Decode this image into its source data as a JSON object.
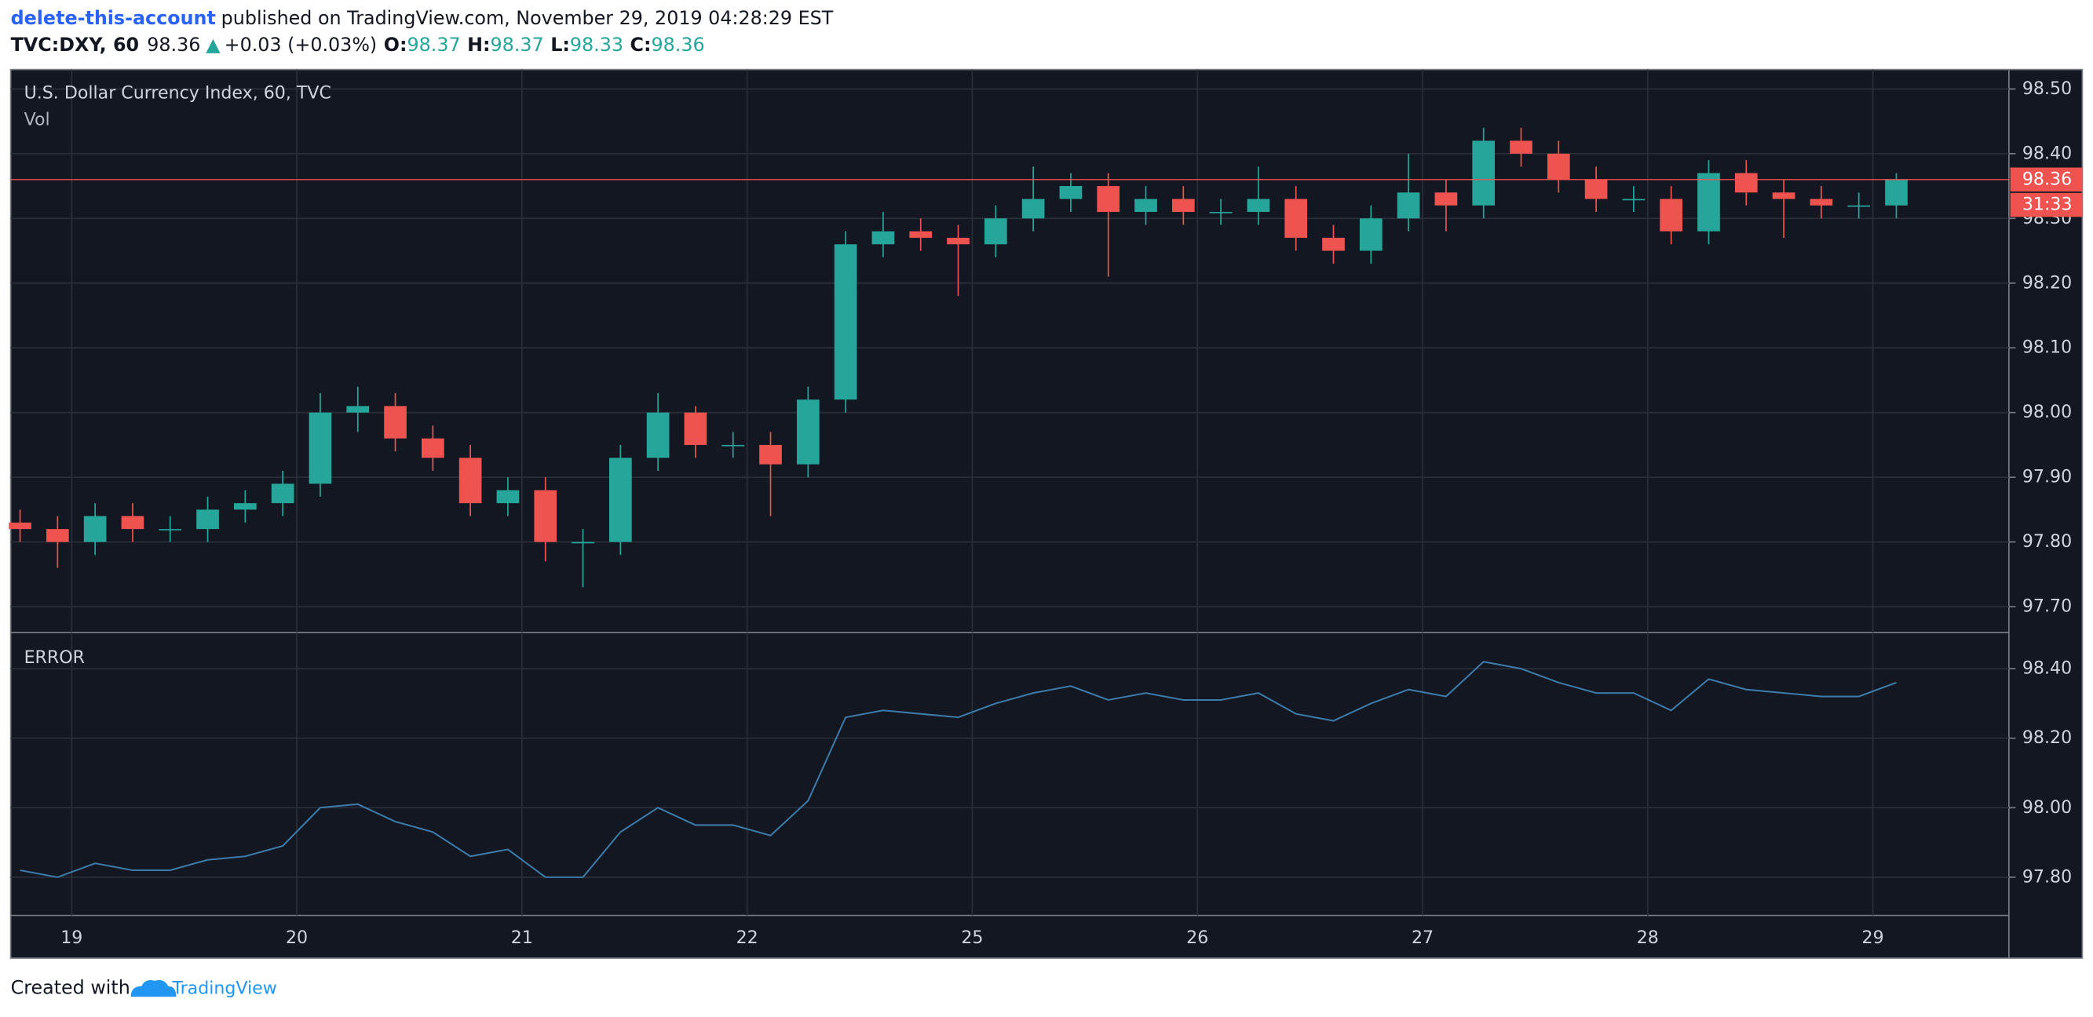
{
  "header": {
    "author": "delete-this-account",
    "published": "published on TradingView.com, November 29, 2019 04:28:29 EST",
    "symbol": "TVC:DXY, 60",
    "price": "98.36",
    "change_arrow": "▲",
    "change": "+0.03 (+0.03%)",
    "ohlc": [
      {
        "label": "O:",
        "value": "98.37"
      },
      {
        "label": "H:",
        "value": "98.37"
      },
      {
        "label": "L:",
        "value": "98.33"
      },
      {
        "label": "C:",
        "value": "98.36"
      }
    ]
  },
  "footer": {
    "text": "Created with",
    "brand": "TradingView"
  },
  "chart_data": [
    {
      "type": "candlestick",
      "title": "U.S. Dollar Currency Index, 60, TVC",
      "subtitle": "Vol",
      "x": [
        1,
        5,
        9,
        13,
        17,
        21,
        25,
        29,
        33,
        37,
        41,
        45,
        49,
        53,
        57,
        61,
        65,
        69,
        73,
        77,
        81,
        85,
        89,
        93,
        97,
        101,
        105,
        109,
        113,
        117,
        121,
        125,
        129,
        133,
        137,
        141,
        145,
        149,
        153,
        157,
        161,
        165,
        169,
        173,
        177,
        181,
        185,
        189,
        193,
        197,
        201
      ],
      "open": [
        97.83,
        97.82,
        97.8,
        97.84,
        97.82,
        97.82,
        97.85,
        97.86,
        97.89,
        98.0,
        98.01,
        97.96,
        97.93,
        97.86,
        97.88,
        97.8,
        97.8,
        97.93,
        98.0,
        97.95,
        97.95,
        97.92,
        98.02,
        98.26,
        98.28,
        98.27,
        98.26,
        98.3,
        98.33,
        98.35,
        98.31,
        98.33,
        98.31,
        98.31,
        98.33,
        98.27,
        98.25,
        98.3,
        98.34,
        98.32,
        98.42,
        98.4,
        98.36,
        98.33,
        98.33,
        98.28,
        98.37,
        98.34,
        98.33,
        98.32,
        98.32
      ],
      "high": [
        97.85,
        97.84,
        97.86,
        97.86,
        97.84,
        97.87,
        97.88,
        97.91,
        98.03,
        98.04,
        98.03,
        97.98,
        97.95,
        97.9,
        97.9,
        97.82,
        97.95,
        98.03,
        98.01,
        97.97,
        97.97,
        98.04,
        98.28,
        98.31,
        98.3,
        98.29,
        98.32,
        98.38,
        98.37,
        98.37,
        98.35,
        98.35,
        98.33,
        98.38,
        98.35,
        98.29,
        98.32,
        98.4,
        98.36,
        98.44,
        98.44,
        98.42,
        98.38,
        98.35,
        98.35,
        98.39,
        98.39,
        98.36,
        98.35,
        98.34,
        98.37
      ],
      "low": [
        97.8,
        97.76,
        97.78,
        97.8,
        97.8,
        97.8,
        97.83,
        97.84,
        97.87,
        97.97,
        97.94,
        97.91,
        97.84,
        97.84,
        97.77,
        97.73,
        97.78,
        97.91,
        97.93,
        97.93,
        97.84,
        97.9,
        98.0,
        98.24,
        98.25,
        98.18,
        98.24,
        98.28,
        98.31,
        98.21,
        98.29,
        98.29,
        98.29,
        98.29,
        98.25,
        98.23,
        98.23,
        98.28,
        98.28,
        98.3,
        98.38,
        98.34,
        98.31,
        98.31,
        98.26,
        98.26,
        98.32,
        98.27,
        98.3,
        98.3,
        98.3
      ],
      "close": [
        97.82,
        97.8,
        97.84,
        97.82,
        97.82,
        97.85,
        97.86,
        97.89,
        98.0,
        98.01,
        97.96,
        97.93,
        97.86,
        97.88,
        97.8,
        97.8,
        97.93,
        98.0,
        97.95,
        97.95,
        97.92,
        98.02,
        98.26,
        98.28,
        98.27,
        98.26,
        98.3,
        98.33,
        98.35,
        98.31,
        98.33,
        98.31,
        98.31,
        98.33,
        98.27,
        98.25,
        98.3,
        98.34,
        98.32,
        98.42,
        98.4,
        98.36,
        98.33,
        98.33,
        98.28,
        98.37,
        98.34,
        98.33,
        98.32,
        98.32,
        98.36
      ],
      "up_color": "#26a69a",
      "down_color": "#ef5350",
      "xlim": [
        0,
        213
      ],
      "xticks": [
        {
          "value": 6.5,
          "label": "19"
        },
        {
          "value": 30.5,
          "label": "20"
        },
        {
          "value": 54.5,
          "label": "21"
        },
        {
          "value": 78.5,
          "label": "22"
        },
        {
          "value": 102.5,
          "label": "25"
        },
        {
          "value": 126.5,
          "label": "26"
        },
        {
          "value": 150.5,
          "label": "27"
        },
        {
          "value": 174.5,
          "label": "28"
        },
        {
          "value": 198.5,
          "label": "29"
        }
      ],
      "ylim": [
        97.66,
        98.53
      ],
      "yticks": [
        {
          "value": 97.7,
          "label": "97.70"
        },
        {
          "value": 97.8,
          "label": "97.80"
        },
        {
          "value": 97.9,
          "label": "97.90"
        },
        {
          "value": 98.0,
          "label": "98.00"
        },
        {
          "value": 98.1,
          "label": "98.10"
        },
        {
          "value": 98.2,
          "label": "98.20"
        },
        {
          "value": 98.3,
          "label": "98.30"
        },
        {
          "value": 98.4,
          "label": "98.40"
        },
        {
          "value": 98.5,
          "label": "98.50"
        }
      ],
      "last_price": {
        "value": 98.36,
        "label": "98.36"
      },
      "countdown": "31:33",
      "grid": true
    },
    {
      "type": "line",
      "title": "ERROR",
      "x": [
        1,
        5,
        9,
        13,
        17,
        21,
        25,
        29,
        33,
        37,
        41,
        45,
        49,
        53,
        57,
        61,
        65,
        69,
        73,
        77,
        81,
        85,
        89,
        93,
        97,
        101,
        105,
        109,
        113,
        117,
        121,
        125,
        129,
        133,
        137,
        141,
        145,
        149,
        153,
        157,
        161,
        165,
        169,
        173,
        177,
        181,
        185,
        189,
        193,
        197,
        201
      ],
      "values": [
        97.82,
        97.8,
        97.84,
        97.82,
        97.82,
        97.85,
        97.86,
        97.89,
        98.0,
        98.01,
        97.96,
        97.93,
        97.86,
        97.88,
        97.8,
        97.8,
        97.93,
        98.0,
        97.95,
        97.95,
        97.92,
        98.02,
        98.26,
        98.28,
        98.27,
        98.26,
        98.3,
        98.33,
        98.35,
        98.31,
        98.33,
        98.31,
        98.31,
        98.33,
        98.27,
        98.25,
        98.3,
        98.34,
        98.32,
        98.42,
        98.4,
        98.36,
        98.33,
        98.33,
        98.28,
        98.37,
        98.34,
        98.33,
        98.32,
        98.32,
        98.36
      ],
      "color": "#3d7aa8",
      "xlim": [
        0,
        213
      ],
      "ylim": [
        97.69,
        98.5
      ],
      "yticks": [
        {
          "value": 97.8,
          "label": "97.80"
        },
        {
          "value": 98.0,
          "label": "98.00"
        },
        {
          "value": 98.2,
          "label": "98.20"
        },
        {
          "value": 98.4,
          "label": "98.40"
        }
      ],
      "grid": true
    }
  ]
}
